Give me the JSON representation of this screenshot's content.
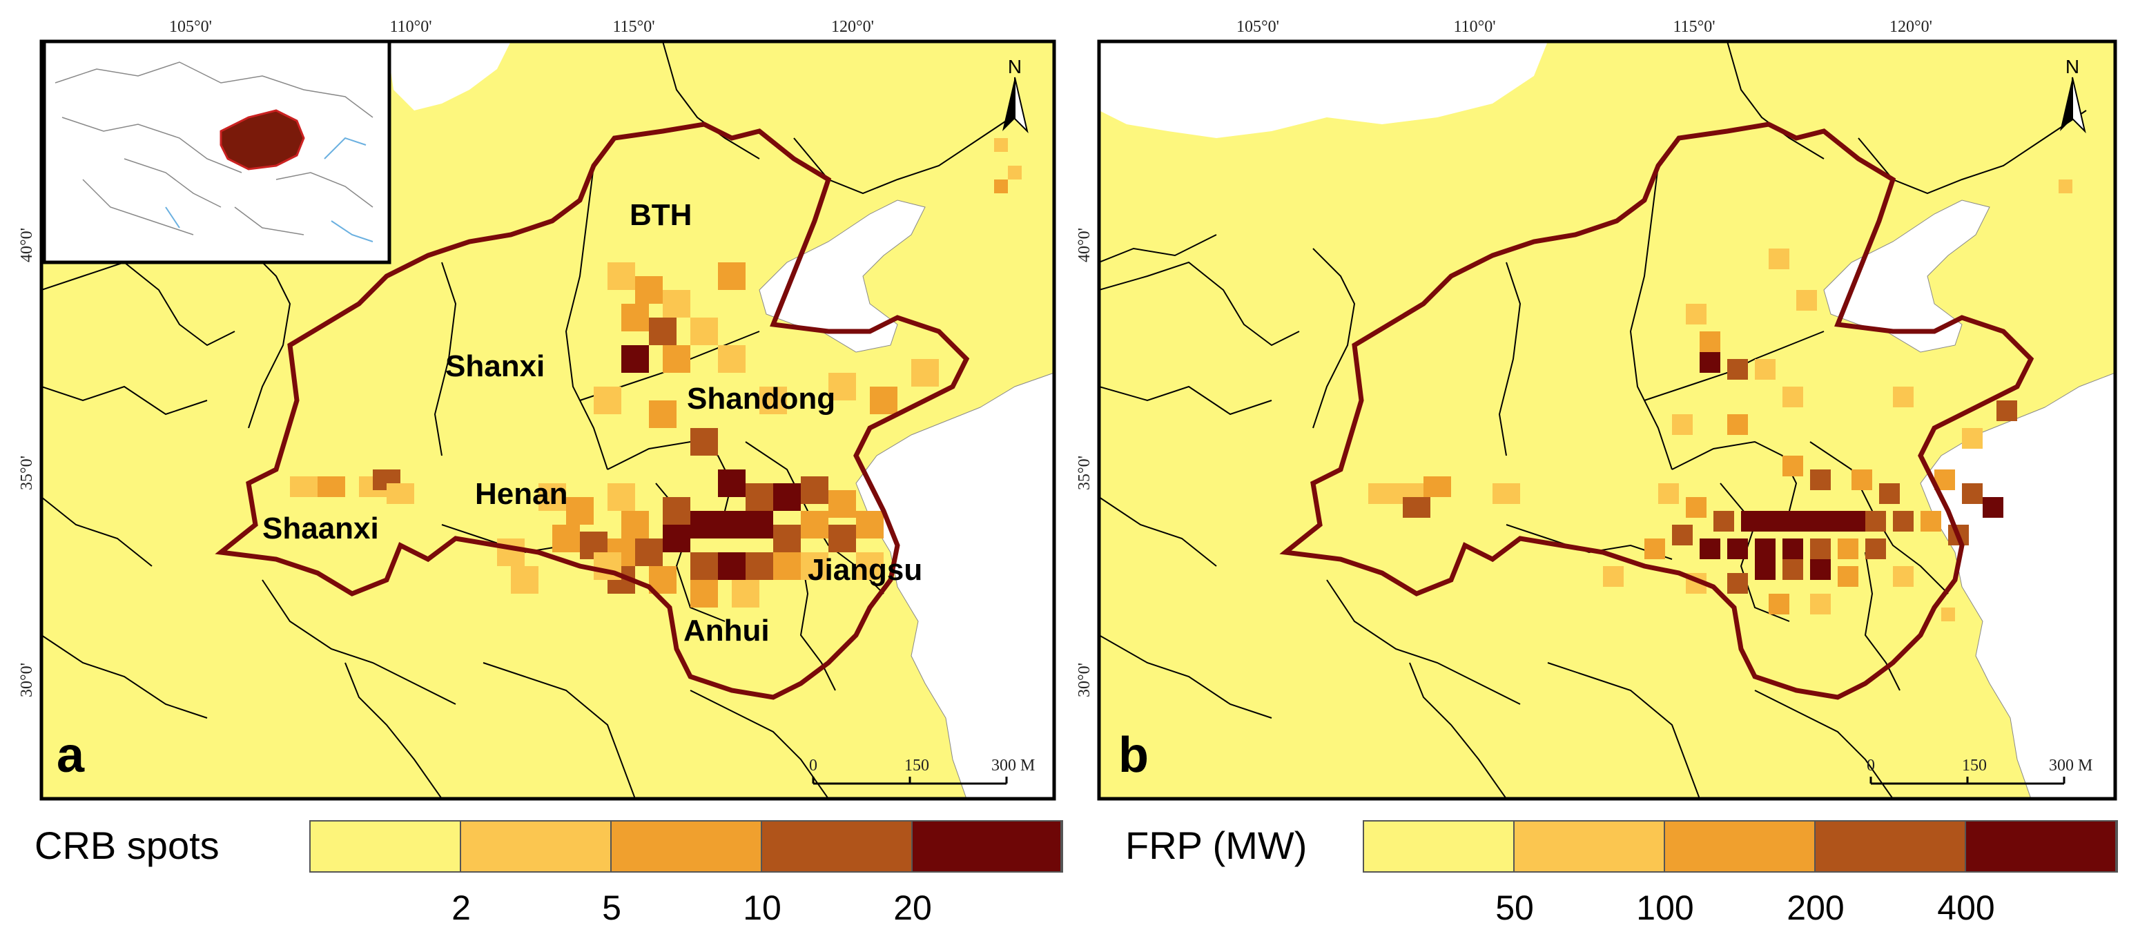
{
  "panels": [
    {
      "letter": "a",
      "lon_ticks": [
        "105°0'",
        "110°0'",
        "115°0'",
        "120°0'"
      ],
      "lat_ticks": [
        "40°0'",
        "35°0'",
        "30°0'"
      ],
      "north": "N",
      "scale": {
        "start": "0",
        "mid": "150",
        "end": "300 M"
      },
      "regions": [
        "BTH",
        "Shanxi",
        "Shandong",
        "Henan",
        "Shaanxi",
        "Jiangsu",
        "Anhui"
      ],
      "inset": true
    },
    {
      "letter": "b",
      "lon_ticks": [
        "105°0'",
        "110°0'",
        "115°0'",
        "120°0'"
      ],
      "lat_ticks": [
        "40°0'",
        "35°0'",
        "30°0'"
      ],
      "north": "N",
      "scale": {
        "start": "0",
        "mid": "150",
        "end": "300 M"
      },
      "regions": [],
      "inset": false
    }
  ],
  "legends": [
    {
      "title": "CRB spots",
      "breaks": [
        "2",
        "5",
        "10",
        "20"
      ],
      "colors": [
        "#fdf47a",
        "#fbc650",
        "#f0a02e",
        "#b0541a",
        "#6e0606"
      ]
    },
    {
      "title": "FRP (MW)",
      "breaks": [
        "50",
        "100",
        "200",
        "400"
      ],
      "colors": [
        "#fdf47a",
        "#fbc650",
        "#f0a02e",
        "#b0541a",
        "#6e0606"
      ]
    }
  ],
  "colors": {
    "land": "#fdf77e",
    "sea": "#ffffff",
    "boundary": "#7a0a0a",
    "inset_region": "#7a1a0a"
  }
}
